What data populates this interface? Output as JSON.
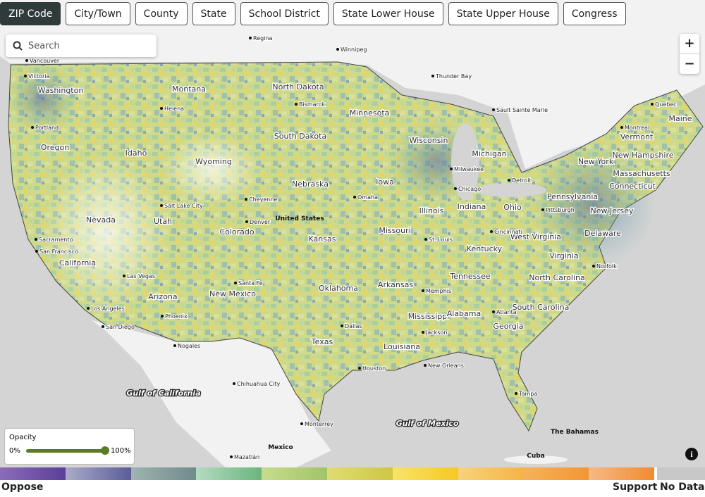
{
  "tabs": [
    "ZIP Code",
    "City/Town",
    "County",
    "State",
    "School District",
    "State Lower House",
    "State Upper House",
    "Congress"
  ],
  "search": {
    "placeholder": "Search"
  },
  "zoom": {
    "in": "+",
    "out": "−"
  },
  "opacity": {
    "title": "Opacity",
    "min_label": "0%",
    "max_label": "100%"
  },
  "legend": {
    "low_label": "Oppose",
    "high_label": "Support",
    "no_data_label": "No Data",
    "no_data_color": "#c8c8c8",
    "segments": [
      [
        "#8b6cb8",
        "#5b3f99"
      ],
      [
        "#a9acc9",
        "#5b5c98"
      ],
      [
        "#9fb3b0",
        "#6e8c8a"
      ],
      [
        "#b3dcc0",
        "#6cb47e"
      ],
      [
        "#c6dc8e",
        "#a2c466"
      ],
      [
        "#e0dc72",
        "#cfc644"
      ],
      [
        "#f8e468",
        "#f6c824"
      ],
      [
        "#f8d27a",
        "#f6b446"
      ],
      [
        "#f6b25a",
        "#f39634"
      ],
      [
        "#f7b986",
        "#f28a2e"
      ]
    ]
  },
  "state_labels": [
    "Washington",
    "Oregon",
    "California",
    "Nevada",
    "Idaho",
    "Montana",
    "Wyoming",
    "Utah",
    "Colorado",
    "Arizona",
    "New Mexico",
    "North Dakota",
    "South Dakota",
    "Nebraska",
    "Kansas",
    "Oklahoma",
    "Texas",
    "Minnesota",
    "Iowa",
    "Missouri",
    "Arkansas",
    "Louisiana",
    "Wisconsin",
    "Illinois",
    "Michigan",
    "Indiana",
    "Ohio",
    "Kentucky",
    "Tennessee",
    "Mississippi",
    "Alabama",
    "Georgia",
    "South Carolina",
    "North Carolina",
    "Virginia",
    "West Virginia",
    "Pennsylvania",
    "New York",
    "Maine",
    "Vermont",
    "New Hampshire",
    "Massachusetts",
    "Connecticut",
    "New Jersey",
    "Delaware"
  ],
  "city_labels": [
    "Vancouver",
    "Victoria",
    "Portland",
    "Sacramento",
    "San Francisco",
    "Los Angeles",
    "San Diego",
    "Las Vegas",
    "Salt Lake City",
    "Helena",
    "Cheyenne",
    "Denver",
    "Phoenix",
    "Nogales",
    "Santa Fe",
    "Bismarck",
    "Omaha",
    "Dallas",
    "Houston",
    "Chihuahua City",
    "Monterrey",
    "Mazatlán",
    "Regina",
    "Winnipeg",
    "Thunder Bay",
    "Sault Sainte Marie",
    "Milwaukee",
    "Chicago",
    "Detroit",
    "Montreal",
    "Quebec",
    "Pittsburgh",
    "Cincinnati",
    "St. Louis",
    "Memphis",
    "Jackson",
    "New Orleans",
    "Atlanta",
    "Tampa",
    "Norfolk"
  ],
  "country_labels": [
    "United States",
    "Mexico",
    "Cuba",
    "The Bahamas"
  ],
  "water_labels": [
    "Gulf of California",
    "Gulf of Mexico"
  ]
}
